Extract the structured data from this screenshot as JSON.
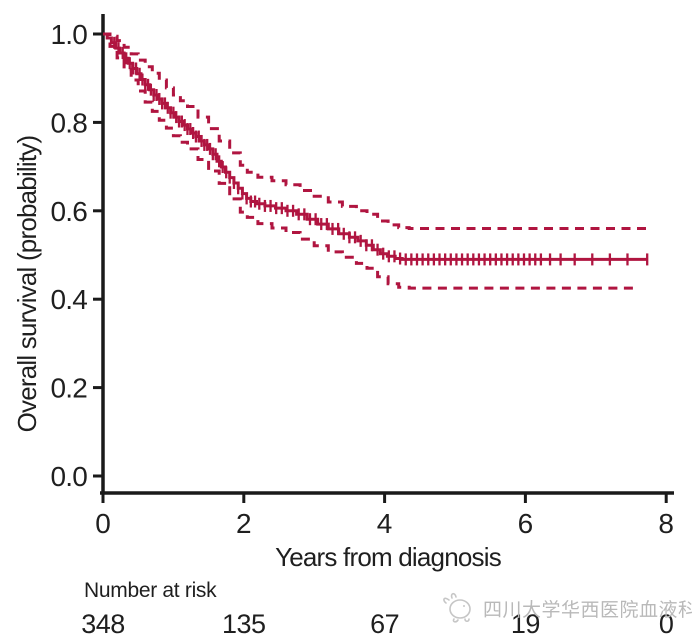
{
  "figure": {
    "watermark_text": "四川大学华西医院血液科"
  },
  "chart_data": {
    "type": "line",
    "subtype": "kaplan-meier-survival",
    "title": "",
    "xlabel": "Years from diagnosis",
    "ylabel": "Overall survival (probability)",
    "xlim": [
      0,
      8
    ],
    "ylim": [
      0.0,
      1.0
    ],
    "x_ticks": [
      0,
      2,
      4,
      6,
      8
    ],
    "y_ticks": [
      1.0,
      0.8,
      0.6,
      0.4,
      0.2,
      0.0
    ],
    "grid": false,
    "legend": "none",
    "colors": {
      "curve": "#B01540",
      "axis": "#1a1a1a",
      "text": "#1f1f1f",
      "watermark": "#b9b9b9"
    },
    "series": [
      {
        "name": "Overall survival",
        "style": "solid",
        "points": [
          [
            0,
            1.0
          ],
          [
            0.06,
            0.991
          ],
          [
            0.12,
            0.98
          ],
          [
            0.18,
            0.968
          ],
          [
            0.24,
            0.957
          ],
          [
            0.3,
            0.945
          ],
          [
            0.36,
            0.934
          ],
          [
            0.42,
            0.922
          ],
          [
            0.48,
            0.91
          ],
          [
            0.54,
            0.897
          ],
          [
            0.6,
            0.885
          ],
          [
            0.66,
            0.874
          ],
          [
            0.72,
            0.862
          ],
          [
            0.78,
            0.853
          ],
          [
            0.84,
            0.843
          ],
          [
            0.9,
            0.833
          ],
          [
            0.96,
            0.822
          ],
          [
            1.02,
            0.812
          ],
          [
            1.08,
            0.802
          ],
          [
            1.14,
            0.794
          ],
          [
            1.2,
            0.785
          ],
          [
            1.26,
            0.776
          ],
          [
            1.32,
            0.768
          ],
          [
            1.38,
            0.758
          ],
          [
            1.44,
            0.749
          ],
          [
            1.5,
            0.74
          ],
          [
            1.56,
            0.728
          ],
          [
            1.62,
            0.712
          ],
          [
            1.68,
            0.699
          ],
          [
            1.74,
            0.687
          ],
          [
            1.8,
            0.675
          ],
          [
            1.86,
            0.663
          ],
          [
            1.92,
            0.651
          ],
          [
            1.98,
            0.639
          ],
          [
            2.04,
            0.628
          ],
          [
            2.1,
            0.621
          ],
          [
            2.18,
            0.616
          ],
          [
            2.3,
            0.611
          ],
          [
            2.45,
            0.606
          ],
          [
            2.6,
            0.6
          ],
          [
            2.75,
            0.592
          ],
          [
            2.9,
            0.581
          ],
          [
            3.05,
            0.57
          ],
          [
            3.2,
            0.559
          ],
          [
            3.35,
            0.548
          ],
          [
            3.5,
            0.54
          ],
          [
            3.62,
            0.532
          ],
          [
            3.74,
            0.522
          ],
          [
            3.84,
            0.512
          ],
          [
            3.94,
            0.503
          ],
          [
            4.04,
            0.497
          ],
          [
            4.15,
            0.492
          ],
          [
            4.25,
            0.49
          ],
          [
            7.73,
            0.49
          ]
        ]
      },
      {
        "name": "95% CI upper",
        "style": "dashed",
        "points": [
          [
            0,
            1.0
          ],
          [
            0.1,
            0.995
          ],
          [
            0.2,
            0.985
          ],
          [
            0.3,
            0.97
          ],
          [
            0.4,
            0.955
          ],
          [
            0.5,
            0.941
          ],
          [
            0.6,
            0.926
          ],
          [
            0.7,
            0.911
          ],
          [
            0.8,
            0.896
          ],
          [
            0.9,
            0.878
          ],
          [
            1.0,
            0.862
          ],
          [
            1.1,
            0.849
          ],
          [
            1.2,
            0.836
          ],
          [
            1.35,
            0.812
          ],
          [
            1.5,
            0.786
          ],
          [
            1.65,
            0.758
          ],
          [
            1.8,
            0.731
          ],
          [
            1.95,
            0.703
          ],
          [
            2.05,
            0.687
          ],
          [
            2.2,
            0.676
          ],
          [
            2.4,
            0.668
          ],
          [
            2.6,
            0.659
          ],
          [
            2.8,
            0.646
          ],
          [
            3.0,
            0.633
          ],
          [
            3.2,
            0.62
          ],
          [
            3.4,
            0.61
          ],
          [
            3.6,
            0.6
          ],
          [
            3.75,
            0.592
          ],
          [
            3.9,
            0.577
          ],
          [
            4.05,
            0.568
          ],
          [
            4.2,
            0.562
          ],
          [
            4.35,
            0.56
          ],
          [
            7.73,
            0.56
          ]
        ]
      },
      {
        "name": "95% CI lower",
        "style": "dashed",
        "points": [
          [
            0,
            1.0
          ],
          [
            0.1,
            0.972
          ],
          [
            0.2,
            0.946
          ],
          [
            0.3,
            0.92
          ],
          [
            0.4,
            0.896
          ],
          [
            0.5,
            0.871
          ],
          [
            0.6,
            0.846
          ],
          [
            0.7,
            0.825
          ],
          [
            0.8,
            0.805
          ],
          [
            0.9,
            0.787
          ],
          [
            1.0,
            0.77
          ],
          [
            1.1,
            0.755
          ],
          [
            1.2,
            0.74
          ],
          [
            1.35,
            0.716
          ],
          [
            1.5,
            0.69
          ],
          [
            1.65,
            0.662
          ],
          [
            1.8,
            0.627
          ],
          [
            1.95,
            0.597
          ],
          [
            2.05,
            0.585
          ],
          [
            2.2,
            0.571
          ],
          [
            2.4,
            0.561
          ],
          [
            2.6,
            0.551
          ],
          [
            2.8,
            0.536
          ],
          [
            3.0,
            0.521
          ],
          [
            3.2,
            0.507
          ],
          [
            3.4,
            0.495
          ],
          [
            3.6,
            0.481
          ],
          [
            3.75,
            0.47
          ],
          [
            3.9,
            0.451
          ],
          [
            4.05,
            0.435
          ],
          [
            4.2,
            0.427
          ],
          [
            4.35,
            0.425
          ],
          [
            7.6,
            0.425
          ]
        ]
      }
    ],
    "censor_times": [
      0.16,
      0.22,
      0.28,
      0.33,
      0.38,
      0.43,
      0.47,
      0.52,
      0.56,
      0.6,
      0.64,
      0.68,
      0.72,
      0.76,
      0.8,
      0.84,
      0.88,
      0.92,
      0.96,
      1.0,
      1.04,
      1.08,
      1.12,
      1.16,
      1.2,
      1.24,
      1.28,
      1.32,
      1.36,
      1.4,
      1.44,
      1.48,
      1.52,
      1.56,
      1.6,
      1.65,
      1.7,
      1.75,
      1.8,
      1.86,
      1.92,
      1.98,
      2.04,
      2.1,
      2.16,
      2.22,
      2.3,
      2.38,
      2.46,
      2.54,
      2.62,
      2.7,
      2.78,
      2.86,
      2.94,
      3.02,
      3.1,
      3.18,
      3.26,
      3.34,
      3.42,
      3.5,
      3.58,
      3.66,
      3.74,
      3.82,
      3.9,
      3.98,
      4.06,
      4.14,
      4.22,
      4.3,
      4.38,
      4.46,
      4.54,
      4.62,
      4.7,
      4.78,
      4.86,
      4.94,
      5.02,
      5.1,
      5.18,
      5.26,
      5.34,
      5.42,
      5.5,
      5.58,
      5.66,
      5.74,
      5.82,
      5.9,
      5.98,
      6.06,
      6.14,
      6.22,
      6.35,
      6.5,
      6.7,
      6.95,
      7.2,
      7.45,
      7.73
    ],
    "risk_table": {
      "label": "Number at risk",
      "times": [
        0,
        2,
        4,
        6,
        8
      ],
      "counts": [
        348,
        135,
        67,
        19,
        0
      ]
    }
  }
}
